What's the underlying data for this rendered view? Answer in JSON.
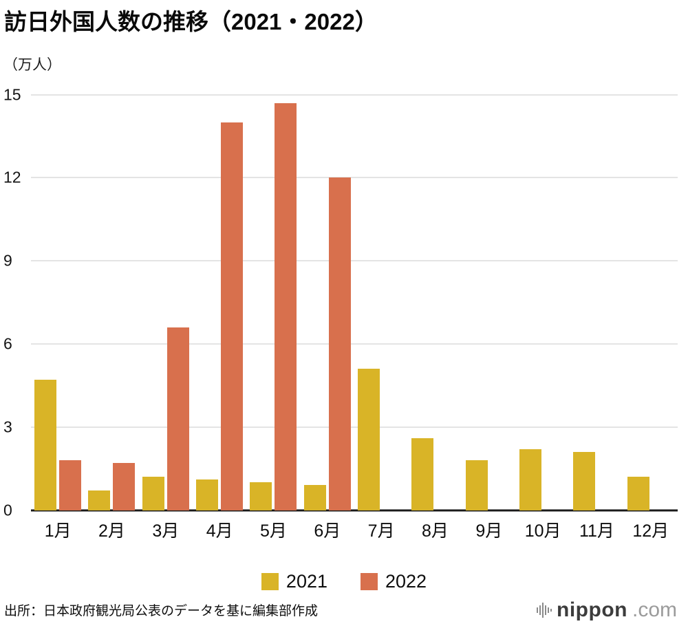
{
  "title": "訪日外国人数の推移（2021・2022）",
  "unit_label": "（万人）",
  "source": "出所：日本政府観光局公表のデータを基に編集部作成",
  "logo": {
    "name": "nippon",
    "tld": ".com",
    "icon": "waveform-bars-icon"
  },
  "colors": {
    "series_2021": "#d9b427",
    "series_2022": "#d8704d",
    "grid": "#c9c9c9",
    "axis": "#1a1a1a"
  },
  "chart_data": {
    "type": "bar",
    "title": "訪日外国人数の推移（2021・2022）",
    "xlabel": "",
    "ylabel": "（万人）",
    "categories": [
      "1月",
      "2月",
      "3月",
      "4月",
      "5月",
      "6月",
      "7月",
      "8月",
      "9月",
      "10月",
      "11月",
      "12月"
    ],
    "series": [
      {
        "name": "2021",
        "color": "#d9b427",
        "values": [
          4.7,
          0.7,
          1.2,
          1.1,
          1.0,
          0.9,
          5.1,
          2.6,
          1.8,
          2.2,
          2.1,
          1.2
        ]
      },
      {
        "name": "2022",
        "color": "#d8704d",
        "values": [
          1.8,
          1.7,
          6.6,
          14.0,
          14.7,
          12.0,
          null,
          null,
          null,
          null,
          null,
          null
        ]
      }
    ],
    "ylim": [
      0,
      15
    ],
    "yticks": [
      0,
      3,
      6,
      9,
      12,
      15
    ],
    "grid": true,
    "legend_position": "bottom"
  }
}
